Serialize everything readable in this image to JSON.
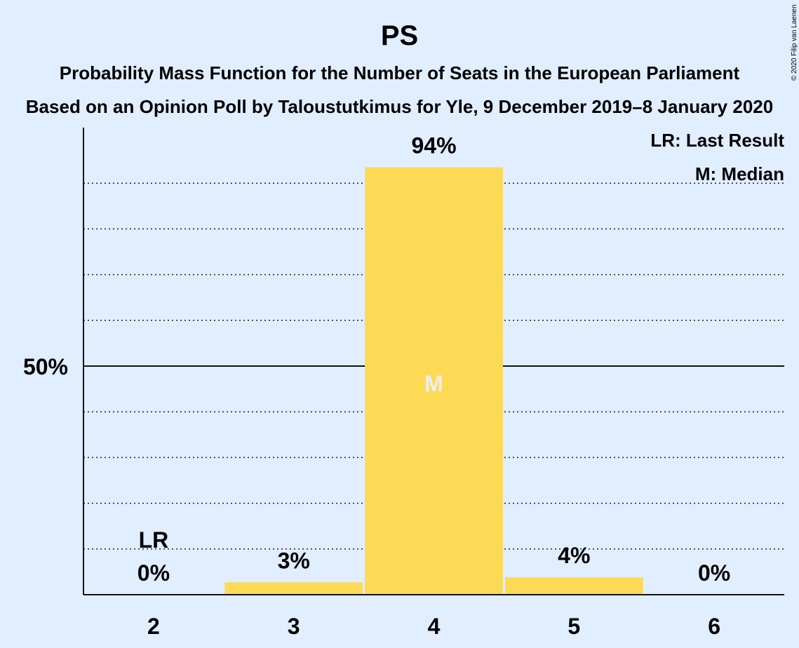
{
  "chart_data": {
    "type": "bar",
    "title": "PS",
    "subtitle1": "Probability Mass Function for the Number of Seats in the European Parliament",
    "subtitle2": "Based on an Opinion Poll by Taloustutkimus for Yle, 9 December 2019–8 January 2020",
    "categories": [
      "2",
      "3",
      "4",
      "5",
      "6"
    ],
    "values": [
      0,
      2.7,
      93.5,
      3.8,
      0
    ],
    "value_labels": [
      "0%",
      "3%",
      "94%",
      "4%",
      "0%"
    ],
    "ylim": [
      0,
      100
    ],
    "ytick_label": "50%",
    "ytick_value": 50,
    "minor_grid_step": 10,
    "last_result_category": "2",
    "last_result_marker": "LR",
    "median_category": "4",
    "median_marker": "M",
    "legend": [
      "LR: Last Result",
      "M: Median"
    ],
    "legend_position": "top-right",
    "bar_color": "#fdda55",
    "median_marker_color": "#eeeeee",
    "copyright": "© 2020 Filip van Laenen"
  }
}
